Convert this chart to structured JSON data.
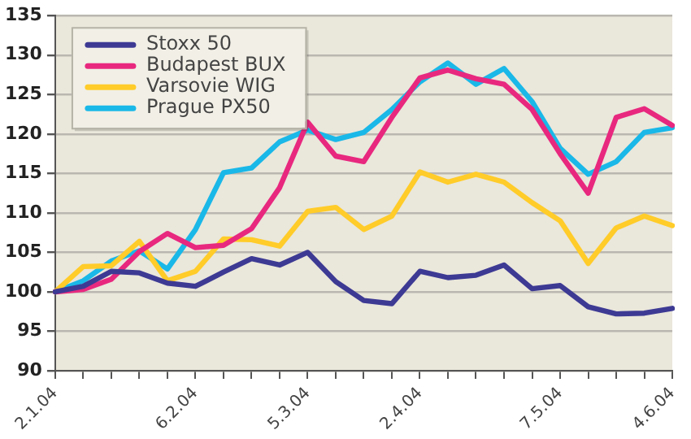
{
  "chart_data": {
    "type": "line",
    "categories": [
      "2.1.04",
      null,
      null,
      null,
      null,
      "6.2.04",
      null,
      null,
      null,
      "5.3.04",
      null,
      null,
      null,
      "2.4.04",
      null,
      null,
      null,
      null,
      "7.5.04",
      null,
      null,
      null,
      "4.6.04"
    ],
    "series": [
      {
        "name": "Stoxx 50",
        "color": "#3d3a94",
        "values": [
          100,
          100.7,
          102.6,
          102.4,
          101.1,
          100.7,
          102.5,
          104.2,
          103.4,
          105,
          101.3,
          98.9,
          98.5,
          102.6,
          101.8,
          102.1,
          103.4,
          100.4,
          100.8,
          98.1,
          97.2,
          97.3,
          97.9
        ]
      },
      {
        "name": "Budapest BUX",
        "color": "#e8287f",
        "values": [
          100,
          100.3,
          101.6,
          105.1,
          107.4,
          105.6,
          105.9,
          108,
          113.2,
          121.5,
          117.2,
          116.5,
          122.1,
          127.1,
          128.1,
          127,
          126.3,
          123.1,
          117.5,
          112.5,
          122.1,
          123.2,
          121.1
        ]
      },
      {
        "name": "Varsovie WIG",
        "color": "#ffcc29",
        "values": [
          100,
          103.2,
          103.3,
          106.4,
          101.4,
          102.6,
          106.7,
          106.6,
          105.8,
          110.2,
          110.7,
          107.9,
          109.6,
          115.2,
          113.9,
          114.9,
          113.9,
          111.3,
          109,
          103.6,
          108.1,
          109.6,
          108.4
        ]
      },
      {
        "name": "Prague PX50",
        "color": "#1ab8e8",
        "values": [
          100,
          101.4,
          103.9,
          105.2,
          102.9,
          107.9,
          115.1,
          115.7,
          119,
          120.5,
          119.3,
          120.2,
          123.1,
          126.6,
          129,
          126.3,
          128.3,
          124.1,
          118.2,
          114.9,
          116.5,
          120.2,
          120.8
        ]
      }
    ],
    "ylim": [
      90,
      135
    ],
    "yticks": [
      90,
      95,
      100,
      105,
      110,
      115,
      120,
      125,
      130,
      135
    ],
    "grid": "y",
    "legend": "top left",
    "marker": "none",
    "line_style": "solid"
  }
}
